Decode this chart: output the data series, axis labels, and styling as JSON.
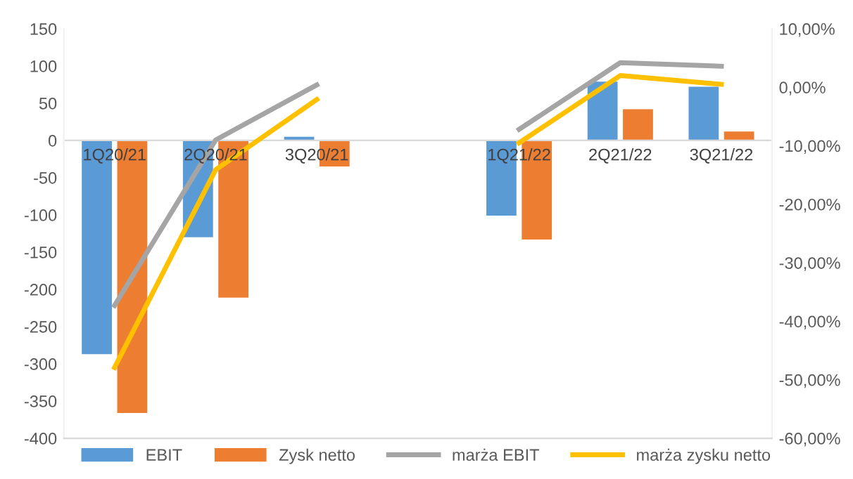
{
  "chart_data": {
    "type": "bar",
    "categories": [
      "1Q20/21",
      "2Q20/21",
      "3Q20/21",
      null,
      "1Q21/22",
      "2Q21/22",
      "3Q21/22"
    ],
    "series": [
      {
        "name": "EBIT",
        "color": "#5b9bd5",
        "values": [
          -287,
          -130,
          5,
          null,
          -101,
          79,
          72
        ]
      },
      {
        "name": "Zysk netto",
        "color": "#ed7d31",
        "values": [
          -366,
          -211,
          -35,
          null,
          -133,
          42,
          12
        ]
      },
      {
        "name": "marża EBIT",
        "type": "line",
        "axis": "y2",
        "color": "#a5a5a5",
        "values": [
          -37.3,
          -9.0,
          0.4,
          null,
          -7.2,
          4.2,
          3.6
        ]
      },
      {
        "name": "marża zysku netto",
        "type": "line",
        "axis": "y2",
        "color": "#ffc000",
        "values": [
          -47.9,
          -14.1,
          -2.1,
          null,
          -9.5,
          2.0,
          0.5
        ]
      }
    ],
    "ylim": [
      -400,
      150
    ],
    "yticks": [
      -400,
      -350,
      -300,
      -250,
      -200,
      -150,
      -100,
      -50,
      0,
      50,
      100,
      150
    ],
    "y2lim": [
      -60,
      10
    ],
    "y2ticks": [
      {
        "value": -60,
        "label": "-60,00%"
      },
      {
        "value": -50,
        "label": "-50,00%"
      },
      {
        "value": -40,
        "label": "-40,00%"
      },
      {
        "value": -30,
        "label": "-30,00%"
      },
      {
        "value": -20,
        "label": "-20,00%"
      },
      {
        "value": -10,
        "label": "-10,00%"
      },
      {
        "value": 0,
        "label": "0,00%"
      },
      {
        "value": 10,
        "label": "10,00%"
      }
    ],
    "grid": false,
    "legend": "bottom",
    "marker": "none",
    "line_style": "solid"
  }
}
